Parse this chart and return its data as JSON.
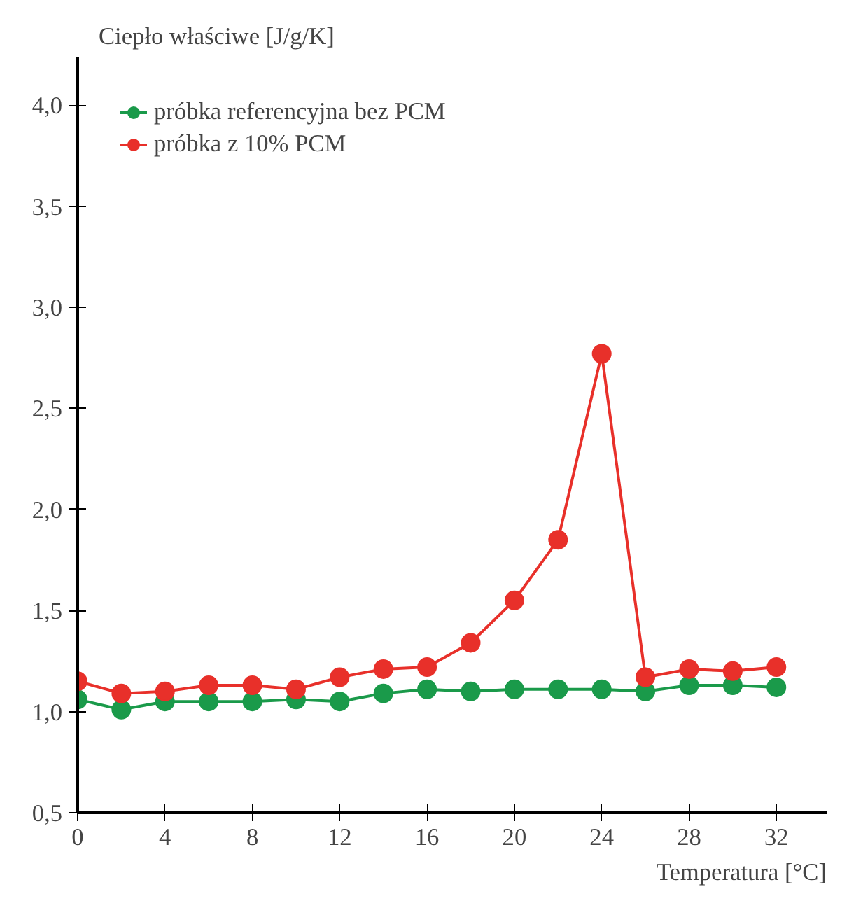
{
  "chart_data": {
    "type": "line",
    "xlabel": "Temperatura [°C]",
    "ylabel": "Ciepło właściwe [J/g/K]",
    "x": [
      0,
      2,
      4,
      6,
      8,
      10,
      12,
      14,
      16,
      18,
      20,
      22,
      24,
      26,
      28,
      30,
      32
    ],
    "series": [
      {
        "name": "próbka referencyjna bez PCM",
        "color": "#1a9a4a",
        "values": [
          1.06,
          1.01,
          1.05,
          1.05,
          1.05,
          1.06,
          1.05,
          1.09,
          1.11,
          1.1,
          1.11,
          1.11,
          1.11,
          1.1,
          1.13,
          1.13,
          1.12
        ]
      },
      {
        "name": "próbka z 10% PCM",
        "color": "#e8302a",
        "values": [
          1.15,
          1.09,
          1.1,
          1.13,
          1.13,
          1.11,
          1.17,
          1.21,
          1.22,
          1.34,
          1.55,
          1.85,
          2.77,
          1.17,
          1.21,
          1.2,
          1.22
        ]
      }
    ],
    "xlim": [
      0,
      34.3
    ],
    "ylim": [
      0.5,
      4.24
    ],
    "xticks": [
      0,
      4,
      8,
      12,
      16,
      20,
      24,
      28,
      32
    ],
    "yticks": [
      {
        "value": 0.5,
        "label": "0,5"
      },
      {
        "value": 1.0,
        "label": "1,0"
      },
      {
        "value": 1.5,
        "label": "1,5"
      },
      {
        "value": 2.0,
        "label": "2,0"
      },
      {
        "value": 2.5,
        "label": "2,5"
      },
      {
        "value": 3.0,
        "label": "3,0"
      },
      {
        "value": 3.5,
        "label": "3,5"
      },
      {
        "value": 4.0,
        "label": "4,0"
      }
    ],
    "grid": false,
    "legend": "top left",
    "marker": "circle",
    "line_style": "solid"
  }
}
